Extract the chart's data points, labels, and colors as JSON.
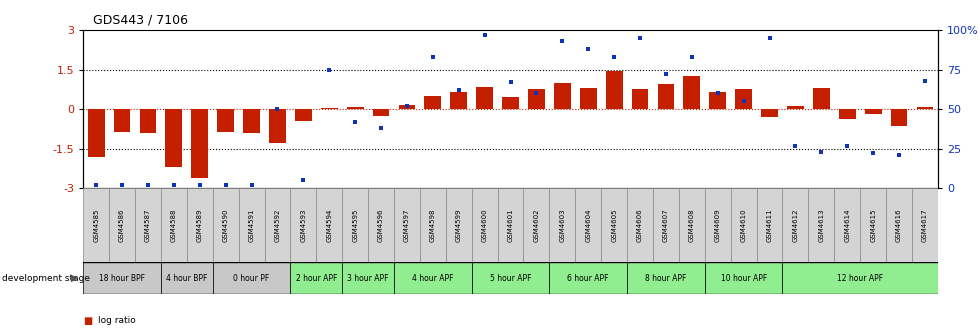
{
  "title": "GDS443 / 7106",
  "samples": [
    "GSM4585",
    "GSM4586",
    "GSM4587",
    "GSM4588",
    "GSM4589",
    "GSM4590",
    "GSM4591",
    "GSM4592",
    "GSM4593",
    "GSM4594",
    "GSM4595",
    "GSM4596",
    "GSM4597",
    "GSM4598",
    "GSM4599",
    "GSM4600",
    "GSM4601",
    "GSM4602",
    "GSM4603",
    "GSM4604",
    "GSM4605",
    "GSM4606",
    "GSM4607",
    "GSM4608",
    "GSM4609",
    "GSM4610",
    "GSM4611",
    "GSM4612",
    "GSM4613",
    "GSM4614",
    "GSM4615",
    "GSM4616",
    "GSM4617"
  ],
  "log_ratio": [
    -1.8,
    -0.85,
    -0.9,
    -2.2,
    -2.6,
    -0.85,
    -0.9,
    -1.3,
    -0.45,
    0.05,
    0.08,
    -0.25,
    0.15,
    0.5,
    0.65,
    0.85,
    0.45,
    0.75,
    1.0,
    0.8,
    1.45,
    0.75,
    0.95,
    1.25,
    0.65,
    0.75,
    -0.28,
    0.12,
    0.8,
    -0.38,
    -0.18,
    -0.65,
    0.1
  ],
  "percentile": [
    2,
    2,
    2,
    2,
    2,
    2,
    2,
    50,
    5,
    75,
    42,
    38,
    52,
    83,
    62,
    97,
    67,
    60,
    93,
    88,
    83,
    95,
    72,
    83,
    60,
    55,
    95,
    27,
    23,
    27,
    22,
    21,
    68
  ],
  "stage_groups": [
    {
      "label": "18 hour BPF",
      "start": 0,
      "end": 2,
      "color": "#c8c8c8"
    },
    {
      "label": "4 hour BPF",
      "start": 3,
      "end": 4,
      "color": "#c8c8c8"
    },
    {
      "label": "0 hour PF",
      "start": 5,
      "end": 7,
      "color": "#c8c8c8"
    },
    {
      "label": "2 hour APF",
      "start": 8,
      "end": 9,
      "color": "#90ee90"
    },
    {
      "label": "3 hour APF",
      "start": 10,
      "end": 11,
      "color": "#90ee90"
    },
    {
      "label": "4 hour APF",
      "start": 12,
      "end": 14,
      "color": "#90ee90"
    },
    {
      "label": "5 hour APF",
      "start": 15,
      "end": 17,
      "color": "#90ee90"
    },
    {
      "label": "6 hour APF",
      "start": 18,
      "end": 20,
      "color": "#90ee90"
    },
    {
      "label": "8 hour APF",
      "start": 21,
      "end": 23,
      "color": "#90ee90"
    },
    {
      "label": "10 hour APF",
      "start": 24,
      "end": 26,
      "color": "#90ee90"
    },
    {
      "label": "12 hour APF",
      "start": 27,
      "end": 32,
      "color": "#90ee90"
    }
  ],
  "bar_color": "#c42000",
  "dot_color": "#1133bb",
  "ylim": [
    -3,
    3
  ],
  "y2lim": [
    0,
    100
  ],
  "left_yticks": [
    -3,
    -1.5,
    0,
    1.5,
    3
  ],
  "left_yticklabels": [
    "-3",
    "-1.5",
    "0",
    "1.5",
    "3"
  ],
  "right_yticks": [
    0,
    25,
    50,
    75,
    100
  ],
  "right_yticklabels": [
    "0",
    "25",
    "50",
    "75",
    "100%"
  ],
  "hlines_dotted": [
    -1.5,
    1.5
  ],
  "hline_reddashed": 0,
  "label_cell_color": "#d4d4d4",
  "label_cell_border": "#888888",
  "figure_width": 9.79,
  "figure_height": 3.36,
  "figure_dpi": 100
}
